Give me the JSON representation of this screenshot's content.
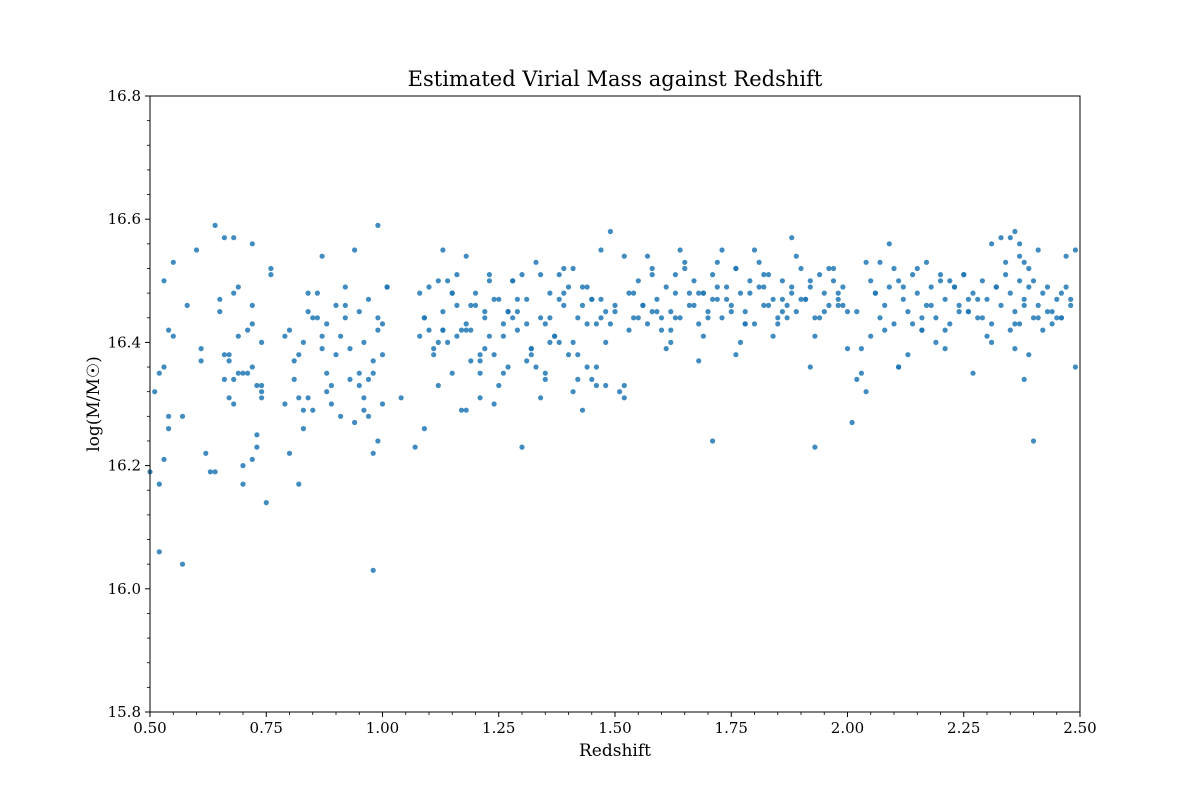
{
  "colors": {
    "point": "#1f77b4",
    "axes": "#000000",
    "background": "#ffffff"
  },
  "chart_data": {
    "type": "scatter",
    "title": "Estimated Virial Mass against Redshift",
    "xlabel": "Redshift",
    "ylabel": "log(M/M☉)",
    "xlim": [
      0.5,
      2.5
    ],
    "ylim": [
      15.8,
      16.8
    ],
    "xticks": [
      "0.50",
      "0.75",
      "1.00",
      "1.25",
      "1.50",
      "1.75",
      "2.00",
      "2.25",
      "2.50"
    ],
    "yticks": [
      "15.8",
      "16.0",
      "16.2",
      "16.4",
      "16.6",
      "16.8"
    ],
    "grid": false,
    "legend": "none",
    "series": [
      {
        "x": [
          0.5,
          0.51,
          0.52,
          0.52,
          0.53,
          0.53,
          0.53,
          0.54,
          0.54,
          0.54,
          0.55,
          0.55,
          0.52,
          0.57,
          0.57,
          0.58,
          0.6,
          0.61,
          0.62,
          0.61,
          0.64,
          0.64,
          0.65,
          0.66,
          0.67,
          0.67,
          0.68,
          0.68,
          0.69,
          0.7,
          0.7,
          0.71,
          0.72,
          0.72,
          0.73,
          0.73,
          0.74,
          0.74,
          0.75,
          0.76,
          0.67,
          0.69,
          0.72,
          0.74,
          0.71,
          0.66,
          0.68,
          0.72,
          0.63,
          0.65,
          0.68,
          0.73,
          0.66,
          0.69,
          0.7,
          0.72,
          0.74,
          0.76,
          0.79,
          0.8,
          0.81,
          0.82,
          0.83,
          0.84,
          0.84,
          0.85,
          0.86,
          0.87,
          0.87,
          0.88,
          0.89,
          0.9,
          0.91,
          0.92,
          0.93,
          0.94,
          0.95,
          0.96,
          0.96,
          0.97,
          0.98,
          0.98,
          0.99,
          0.99,
          1.0,
          1.01,
          0.79,
          0.81,
          0.83,
          0.85,
          0.88,
          0.9,
          0.93,
          0.95,
          0.97,
          1.0,
          0.82,
          0.86,
          0.89,
          0.92,
          0.95,
          0.98,
          0.8,
          0.84,
          0.87,
          0.91,
          0.94,
          0.97,
          1.0,
          0.83,
          0.88,
          0.92,
          0.96,
          0.99,
          0.82,
          0.98,
          0.99,
          1.01,
          1.04,
          1.07,
          1.08,
          1.08,
          1.09,
          1.1,
          1.11,
          1.12,
          1.13,
          1.13,
          1.14,
          1.15,
          1.16,
          1.17,
          1.18,
          1.18,
          1.19,
          1.2,
          1.21,
          1.22,
          1.23,
          1.24,
          1.25,
          1.26,
          1.27,
          1.28,
          1.29,
          1.3,
          1.31,
          1.32,
          1.33,
          1.34,
          1.35,
          1.36,
          1.37,
          1.38,
          1.39,
          1.4,
          1.41,
          1.42,
          1.43,
          1.44,
          1.45,
          1.46,
          1.47,
          1.48,
          1.49,
          1.5,
          1.1,
          1.13,
          1.16,
          1.19,
          1.22,
          1.25,
          1.28,
          1.31,
          1.34,
          1.37,
          1.4,
          1.43,
          1.46,
          1.49,
          1.12,
          1.15,
          1.18,
          1.21,
          1.24,
          1.27,
          1.3,
          1.33,
          1.36,
          1.39,
          1.42,
          1.45,
          1.48,
          1.09,
          1.14,
          1.17,
          1.2,
          1.23,
          1.26,
          1.29,
          1.32,
          1.35,
          1.38,
          1.41,
          1.44,
          1.47,
          1.5,
          1.11,
          1.15,
          1.19,
          1.23,
          1.27,
          1.31,
          1.35,
          1.39,
          1.43,
          1.47,
          1.16,
          1.21,
          1.26,
          1.36,
          1.41,
          1.46,
          1.09,
          1.13,
          1.18,
          1.28,
          1.38,
          1.48,
          1.12,
          1.22,
          1.32,
          1.42,
          1.52,
          1.24,
          1.34,
          1.44,
          1.21,
          1.45,
          1.29,
          1.51,
          1.52,
          1.53,
          1.54,
          1.55,
          1.56,
          1.57,
          1.58,
          1.59,
          1.6,
          1.61,
          1.62,
          1.63,
          1.64,
          1.65,
          1.66,
          1.67,
          1.68,
          1.69,
          1.7,
          1.71,
          1.72,
          1.73,
          1.74,
          1.75,
          1.76,
          1.77,
          1.78,
          1.79,
          1.8,
          1.81,
          1.82,
          1.83,
          1.84,
          1.85,
          1.86,
          1.87,
          1.88,
          1.89,
          1.9,
          1.91,
          1.92,
          1.93,
          1.94,
          1.95,
          1.96,
          1.97,
          1.98,
          1.99,
          2.0,
          1.53,
          1.57,
          1.61,
          1.65,
          1.69,
          1.73,
          1.77,
          1.81,
          1.85,
          1.89,
          1.93,
          1.97,
          1.55,
          1.59,
          1.63,
          1.67,
          1.71,
          1.75,
          1.79,
          1.83,
          1.87,
          1.91,
          1.95,
          1.99,
          1.54,
          1.58,
          1.62,
          1.66,
          1.7,
          1.74,
          1.78,
          1.82,
          1.86,
          1.9,
          1.94,
          1.98,
          1.56,
          1.6,
          1.64,
          1.68,
          1.72,
          1.76,
          1.8,
          1.84,
          1.88,
          1.92,
          1.96,
          2.0,
          1.52,
          1.62,
          1.72,
          1.82,
          1.92,
          1.58,
          1.68,
          1.78,
          1.88,
          1.98,
          1.63,
          1.69,
          1.86,
          1.76,
          1.93,
          1.71,
          2.01,
          2.02,
          2.03,
          2.04,
          2.05,
          2.06,
          2.07,
          2.08,
          2.09,
          2.1,
          2.11,
          2.12,
          2.13,
          2.14,
          2.15,
          2.16,
          2.17,
          2.18,
          2.19,
          2.2,
          2.21,
          2.22,
          2.23,
          2.24,
          2.25,
          2.26,
          2.27,
          2.28,
          2.29,
          2.3,
          2.31,
          2.32,
          2.33,
          2.34,
          2.35,
          2.36,
          2.37,
          2.38,
          2.39,
          2.4,
          2.41,
          2.42,
          2.43,
          2.44,
          2.45,
          2.46,
          2.47,
          2.48,
          2.49,
          2.03,
          2.07,
          2.11,
          2.15,
          2.19,
          2.23,
          2.27,
          2.31,
          2.35,
          2.39,
          2.43,
          2.47,
          2.05,
          2.09,
          2.13,
          2.17,
          2.21,
          2.25,
          2.29,
          2.33,
          2.37,
          2.41,
          2.45,
          2.02,
          2.06,
          2.1,
          2.14,
          2.18,
          2.22,
          2.26,
          2.3,
          2.34,
          2.38,
          2.42,
          2.46,
          2.04,
          2.08,
          2.12,
          2.16,
          2.2,
          2.24,
          2.28,
          2.32,
          2.36,
          2.4,
          2.44,
          2.48,
          2.36,
          2.37,
          2.38,
          2.35,
          2.37,
          2.39,
          2.11,
          2.21,
          2.31,
          2.41,
          2.16,
          2.26,
          2.36,
          2.46,
          2.49,
          2.4,
          2.38
        ],
        "y": [
          16.19,
          16.32,
          16.35,
          16.17,
          16.36,
          16.21,
          16.5,
          16.28,
          16.42,
          16.26,
          16.41,
          16.53,
          16.06,
          16.04,
          16.28,
          16.46,
          16.55,
          16.37,
          16.22,
          16.39,
          16.59,
          16.19,
          16.45,
          16.57,
          16.31,
          16.38,
          16.34,
          16.48,
          16.41,
          16.2,
          16.17,
          16.42,
          16.21,
          16.36,
          16.25,
          16.23,
          16.31,
          16.4,
          16.14,
          16.52,
          16.37,
          16.35,
          16.46,
          16.33,
          16.35,
          16.34,
          16.57,
          16.56,
          16.19,
          16.47,
          16.3,
          16.33,
          16.38,
          16.49,
          16.35,
          16.43,
          16.32,
          16.51,
          16.3,
          16.42,
          16.34,
          16.38,
          16.26,
          16.31,
          16.45,
          16.29,
          16.48,
          16.39,
          16.54,
          16.43,
          16.3,
          16.38,
          16.41,
          16.44,
          16.34,
          16.27,
          16.33,
          16.4,
          16.31,
          16.47,
          16.22,
          16.35,
          16.42,
          16.24,
          16.38,
          16.49,
          16.41,
          16.37,
          16.29,
          16.44,
          16.32,
          16.46,
          16.39,
          16.35,
          16.28,
          16.3,
          16.17,
          16.44,
          16.33,
          16.49,
          16.45,
          16.37,
          16.22,
          16.48,
          16.41,
          16.28,
          16.55,
          16.34,
          16.43,
          16.4,
          16.35,
          16.46,
          16.29,
          16.59,
          16.31,
          16.03,
          16.44,
          16.49,
          16.31,
          16.23,
          16.41,
          16.48,
          16.26,
          16.42,
          16.38,
          16.5,
          16.45,
          16.55,
          16.4,
          16.35,
          16.46,
          16.29,
          16.42,
          16.54,
          16.37,
          16.48,
          16.31,
          16.45,
          16.51,
          16.38,
          16.47,
          16.43,
          16.36,
          16.5,
          16.42,
          16.23,
          16.47,
          16.39,
          16.53,
          16.44,
          16.34,
          16.48,
          16.41,
          16.51,
          16.46,
          16.38,
          16.52,
          16.44,
          16.49,
          16.36,
          16.47,
          16.43,
          16.55,
          16.4,
          16.58,
          16.45,
          16.49,
          16.42,
          16.51,
          16.46,
          16.39,
          16.33,
          16.44,
          16.37,
          16.31,
          16.41,
          16.49,
          16.46,
          16.33,
          16.43,
          16.4,
          16.48,
          16.43,
          16.38,
          16.47,
          16.45,
          16.51,
          16.36,
          16.4,
          16.48,
          16.34,
          16.47,
          16.45,
          16.44,
          16.5,
          16.42,
          16.46,
          16.41,
          16.41,
          16.45,
          16.38,
          16.43,
          16.47,
          16.4,
          16.49,
          16.44,
          16.46,
          16.39,
          16.48,
          16.42,
          16.5,
          16.45,
          16.43,
          16.35,
          16.52,
          16.29,
          16.47,
          16.41,
          16.37,
          16.35,
          16.44,
          16.32,
          16.36,
          16.44,
          16.42,
          16.29,
          16.5,
          16.4,
          16.33,
          16.33,
          16.44,
          16.39,
          16.38,
          16.31,
          16.3,
          16.51,
          16.43,
          16.35,
          16.34,
          16.47,
          16.32,
          16.33,
          16.48,
          16.44,
          16.5,
          16.46,
          16.43,
          16.51,
          16.47,
          16.42,
          16.49,
          16.45,
          16.48,
          16.44,
          16.52,
          16.46,
          16.5,
          16.43,
          16.48,
          16.45,
          16.51,
          16.47,
          16.44,
          16.49,
          16.46,
          16.52,
          16.48,
          16.45,
          16.5,
          16.43,
          16.49,
          16.46,
          16.51,
          16.47,
          16.44,
          16.5,
          16.46,
          16.48,
          16.45,
          16.52,
          16.47,
          16.49,
          16.44,
          16.51,
          16.48,
          16.46,
          16.5,
          16.47,
          16.49,
          16.45,
          16.42,
          16.54,
          16.39,
          16.53,
          16.41,
          16.55,
          16.4,
          16.53,
          16.43,
          16.54,
          16.41,
          16.52,
          16.44,
          16.45,
          16.44,
          16.46,
          16.47,
          16.45,
          16.48,
          16.46,
          16.44,
          16.47,
          16.45,
          16.46,
          16.48,
          16.45,
          16.42,
          16.48,
          16.44,
          16.47,
          16.43,
          16.49,
          16.45,
          16.47,
          16.44,
          16.48,
          16.46,
          16.44,
          16.55,
          16.37,
          16.53,
          16.38,
          16.55,
          16.41,
          16.57,
          16.36,
          16.52,
          16.39,
          16.54,
          16.4,
          16.49,
          16.51,
          16.5,
          16.52,
          16.48,
          16.43,
          16.49,
          16.46,
          16.51,
          16.48,
          16.47,
          16.52,
          16.23,
          16.24,
          16.27,
          16.34,
          16.35,
          16.32,
          16.5,
          16.48,
          16.44,
          16.46,
          16.49,
          16.43,
          16.5,
          16.47,
          16.45,
          16.51,
          16.48,
          16.42,
          16.46,
          16.49,
          16.44,
          16.5,
          16.47,
          16.43,
          16.49,
          16.46,
          16.51,
          16.45,
          16.48,
          16.44,
          16.5,
          16.47,
          16.43,
          16.49,
          16.46,
          16.51,
          16.48,
          16.45,
          16.5,
          16.47,
          16.49,
          16.44,
          16.46,
          16.48,
          16.45,
          16.43,
          16.47,
          16.44,
          16.49,
          16.46,
          16.55,
          16.39,
          16.53,
          16.36,
          16.52,
          16.4,
          16.49,
          16.35,
          16.56,
          16.42,
          16.38,
          16.49,
          16.54,
          16.41,
          16.56,
          16.38,
          16.53,
          16.42,
          16.51,
          16.44,
          16.57,
          16.43,
          16.55,
          16.44,
          16.45,
          16.48,
          16.52,
          16.43,
          16.46,
          16.5,
          16.47,
          16.41,
          16.53,
          16.46,
          16.42,
          16.48,
          16.53,
          16.42,
          16.49,
          16.44,
          16.51,
          16.45,
          16.47,
          16.49,
          16.43,
          16.5,
          16.45,
          16.47,
          16.58,
          16.56,
          16.53,
          16.57,
          16.54,
          16.52,
          16.36,
          16.39,
          16.4,
          16.44,
          16.42,
          16.45,
          16.39,
          16.44,
          16.36,
          16.24,
          16.34
        ]
      }
    ]
  }
}
